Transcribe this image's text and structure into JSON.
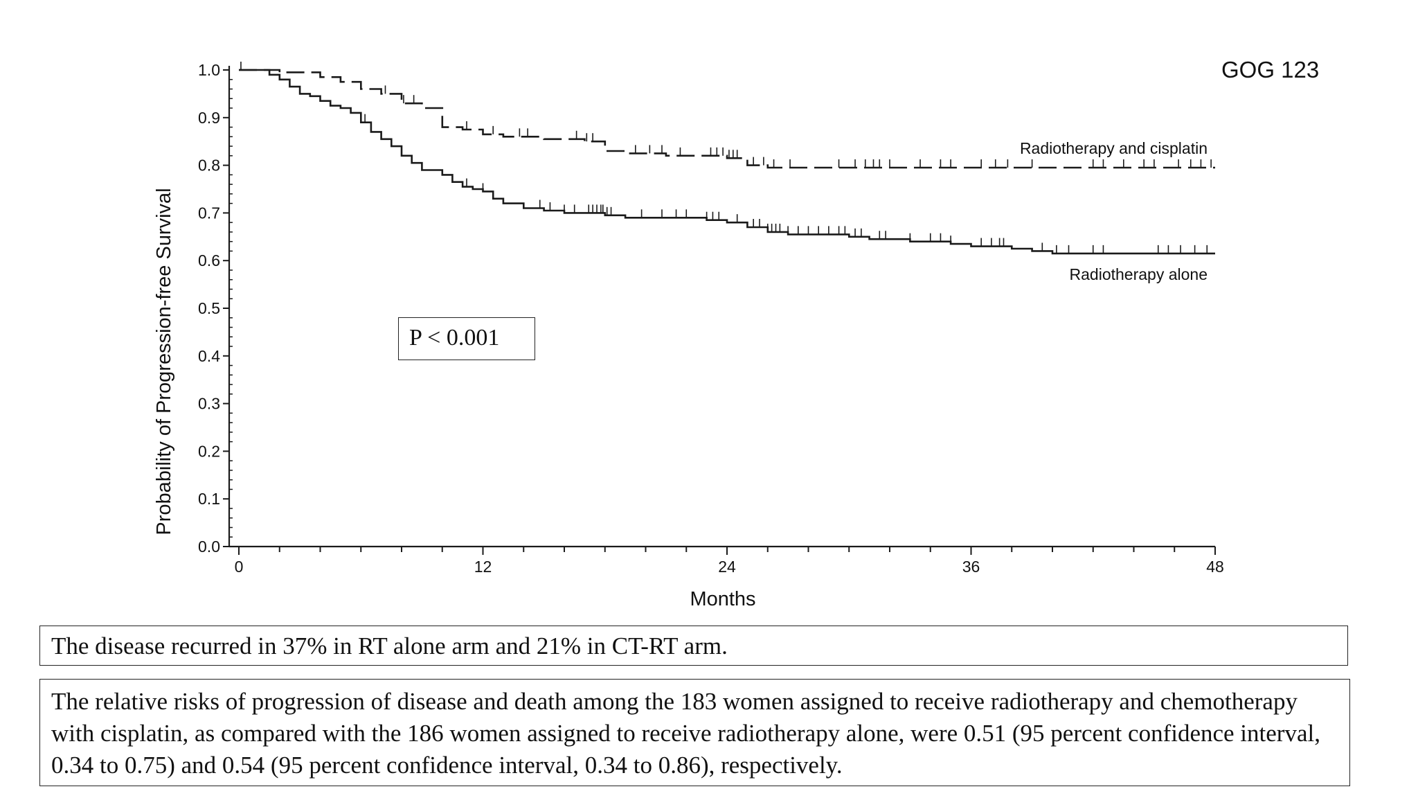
{
  "chart_data": {
    "type": "line",
    "xlabel": "Months",
    "ylabel": "Probability of Progression-free Survival",
    "xlim": [
      0,
      48
    ],
    "ylim": [
      0,
      1.0
    ],
    "x_ticks": [
      "0",
      "12",
      "24",
      "36",
      "48"
    ],
    "y_ticks": [
      "0.0",
      "0.1",
      "0.2",
      "0.3",
      "0.4",
      "0.5",
      "0.6",
      "0.7",
      "0.8",
      "0.9",
      "1.0"
    ],
    "legend_placement": "inline-right",
    "series": [
      {
        "name": "Radiotherapy and cisplatin",
        "style": "dashed",
        "x": [
          0,
          2,
          4,
          5,
          6,
          7,
          8,
          9,
          10,
          11,
          12,
          13,
          15,
          17,
          18,
          19,
          21,
          24,
          25,
          26,
          30,
          36,
          40,
          48
        ],
        "y": [
          1.0,
          0.995,
          0.985,
          0.975,
          0.96,
          0.95,
          0.93,
          0.92,
          0.88,
          0.875,
          0.865,
          0.86,
          0.855,
          0.85,
          0.83,
          0.825,
          0.82,
          0.815,
          0.8,
          0.795,
          0.795,
          0.795,
          0.795,
          0.795
        ],
        "censor_x": [
          0.1,
          7.2,
          8.1,
          8.6,
          11.2,
          12.5,
          13.8,
          14.2,
          16.6,
          17.1,
          17.4,
          19.5,
          20.2,
          20.8,
          21.7,
          23.2,
          23.5,
          23.8,
          24.1,
          24.3,
          24.5,
          25.3,
          25.8,
          26.3,
          27.1,
          29.5,
          30.3,
          30.8,
          31.2,
          31.5,
          32.0,
          33.5,
          34.5,
          35.0,
          36.5,
          37.2,
          37.8,
          39.0,
          42.0,
          42.5,
          43.5,
          44.5,
          45.0,
          46.2,
          46.8,
          47.3,
          47.8
        ]
      },
      {
        "name": "Radiotherapy alone",
        "style": "solid",
        "x": [
          0,
          1,
          1.5,
          2,
          2.5,
          3,
          3.5,
          4,
          4.5,
          5,
          5.5,
          6,
          6.5,
          7,
          7.5,
          8,
          8.5,
          9,
          9.5,
          10,
          10.5,
          11,
          11.5,
          12,
          12.5,
          13,
          14,
          15,
          16,
          17,
          18,
          19,
          20,
          22,
          23,
          24,
          25,
          26,
          27,
          28,
          30,
          31,
          33,
          34,
          35,
          36,
          37,
          38,
          39,
          40,
          48
        ],
        "y": [
          1.0,
          1.0,
          0.99,
          0.98,
          0.965,
          0.95,
          0.945,
          0.935,
          0.925,
          0.92,
          0.91,
          0.89,
          0.87,
          0.855,
          0.84,
          0.82,
          0.805,
          0.79,
          0.79,
          0.78,
          0.765,
          0.755,
          0.75,
          0.745,
          0.73,
          0.72,
          0.71,
          0.705,
          0.7,
          0.7,
          0.695,
          0.69,
          0.69,
          0.69,
          0.685,
          0.68,
          0.67,
          0.66,
          0.655,
          0.655,
          0.65,
          0.645,
          0.64,
          0.64,
          0.635,
          0.63,
          0.63,
          0.625,
          0.62,
          0.615,
          0.615
        ],
        "censor_x": [
          6.2,
          6.5,
          11.2,
          12.0,
          14.8,
          15.3,
          16.0,
          16.5,
          17.2,
          17.4,
          17.6,
          17.8,
          17.9,
          18.1,
          18.3,
          19.8,
          20.8,
          21.5,
          22.0,
          23.0,
          23.3,
          23.6,
          24.5,
          25.3,
          25.6,
          26.0,
          26.2,
          26.4,
          26.6,
          27.0,
          27.5,
          28.0,
          28.5,
          29.0,
          29.5,
          29.8,
          30.3,
          30.6,
          31.5,
          31.8,
          33.0,
          34.0,
          34.5,
          35.0,
          36.5,
          37.0,
          37.4,
          37.6,
          39.5,
          40.2,
          40.8,
          42.0,
          42.5,
          45.2,
          45.7,
          46.3,
          47.0,
          47.6
        ]
      }
    ]
  },
  "annotations": {
    "p_value": "P < 0.001",
    "corner_label": "GOG 123",
    "series_label_top": "Radiotherapy and cisplatin",
    "series_label_bottom": "Radiotherapy alone"
  },
  "text_boxes": {
    "recurrence": "The disease recurred in 37% in RT alone arm and 21% in CT-RT arm.",
    "relative_risk": "The relative risks of progression of disease and death among the 183 women assigned to receive radiotherapy and chemotherapy with cisplatin, as compared with the 186 women assigned to receive radiotherapy alone, were 0.51 (95 percent confidence interval, 0.34 to 0.75) and 0.54 (95 percent confidence interval, 0.34 to 0.86), respectively."
  },
  "colors": {
    "line": "#1a1a1a",
    "axis": "#1a1a1a",
    "text": "#111111"
  }
}
